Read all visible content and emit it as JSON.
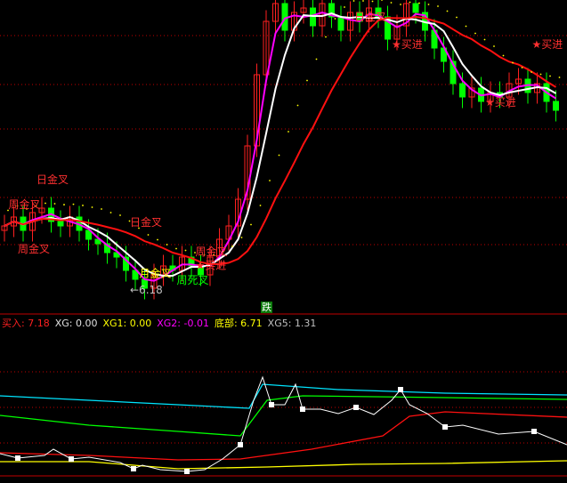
{
  "colors": {
    "up": "#ff2020",
    "down": "#00ff00",
    "ma_fast": "#ff00ff",
    "ma_mid": "#ffffff",
    "ma_slow": "#ff1010",
    "grid": "#c00000",
    "cyan": "#00e5ff",
    "yellow": "#ffff00"
  },
  "chart_data": [
    {
      "type": "candlestick",
      "title": "",
      "opens": [
        7.5,
        7.6,
        7.8,
        7.5,
        7.9,
        8.0,
        7.7,
        7.6,
        7.8,
        7.5,
        7.3,
        7.2,
        7.0,
        6.9,
        6.6,
        6.4,
        6.2,
        6.5,
        6.7,
        6.6,
        6.9,
        6.7,
        6.5,
        6.9,
        7.3,
        7.6,
        8.2,
        9.4,
        11.0,
        12.2,
        12.6,
        12.0,
        12.4,
        12.5,
        12.1,
        12.6,
        12.3,
        12.0,
        12.4,
        12.2,
        12.5,
        12.3,
        11.8,
        12.1,
        12.6,
        12.4,
        12.0,
        11.6,
        11.3,
        10.8,
        10.5,
        10.7,
        10.4,
        10.6,
        10.5,
        10.8,
        10.9,
        10.6,
        10.8,
        10.4
      ],
      "closes": [
        7.6,
        7.8,
        7.5,
        7.9,
        8.0,
        7.7,
        7.6,
        7.8,
        7.5,
        7.3,
        7.2,
        7.0,
        6.9,
        6.6,
        6.4,
        6.2,
        6.5,
        6.7,
        6.6,
        6.9,
        6.7,
        6.5,
        6.9,
        7.3,
        7.6,
        8.2,
        9.4,
        11.0,
        12.2,
        12.6,
        12.0,
        12.4,
        12.5,
        12.1,
        12.6,
        12.3,
        12.0,
        12.4,
        12.2,
        12.5,
        12.3,
        11.8,
        12.1,
        12.6,
        12.4,
        12.0,
        11.6,
        11.3,
        10.8,
        10.5,
        10.7,
        10.4,
        10.6,
        10.5,
        10.8,
        10.9,
        10.6,
        10.8,
        10.4,
        10.2
      ],
      "annotations": [
        {
          "text": "周金叉",
          "index": 1,
          "price": 8.0,
          "color": "#ff3030"
        },
        {
          "text": "日金叉",
          "index": 4,
          "price": 8.0,
          "color": "#ff3030"
        },
        {
          "text": "周金叉",
          "index": 2,
          "price": 7.0,
          "color": "#ff3030"
        },
        {
          "text": "日金叉",
          "index": 14,
          "price": 7.6,
          "color": "#ff3030"
        },
        {
          "text": "月金叉",
          "index": 15,
          "price": 6.45,
          "color": "#ffff00"
        },
        {
          "text": "周死叉",
          "index": 19,
          "price": 6.3,
          "color": "#00ff00"
        },
        {
          "text": "★买进",
          "index": 21,
          "price": 6.35,
          "color": "#ff3030"
        },
        {
          "text": "周金叉",
          "index": 21,
          "price": 6.1,
          "color": "#ff3030"
        },
        {
          "text": "日金叉",
          "index": 38,
          "price": 12.5,
          "color": "#ff3030"
        },
        {
          "text": "★买进",
          "index": 42,
          "price": 11.6,
          "color": "#ff3030"
        },
        {
          "text": "★买进",
          "index": 57,
          "price": 11.6,
          "color": "#ff3030"
        },
        {
          "text": "★买进",
          "index": 52,
          "price": 10.3,
          "color": "#ff3030"
        }
      ],
      "low_marker": "←6.18",
      "signal_badge": "跌"
    },
    {
      "type": "line",
      "x": [
        0,
        20,
        50,
        60,
        80,
        100,
        135,
        150,
        160,
        180,
        210,
        230,
        250,
        270,
        285,
        295,
        305,
        320,
        332,
        340,
        360,
        380,
        400,
        420,
        440,
        450,
        460,
        480,
        500,
        520,
        560,
        600,
        637
      ],
      "series": [
        {
          "color": "#ffffff",
          "values": [
            25,
            20,
            23,
            30,
            19,
            21,
            15,
            8,
            12,
            7,
            5,
            7,
            19,
            35,
            85,
            111,
            80,
            80,
            103,
            75,
            75,
            70,
            77,
            69,
            85,
            97,
            80,
            70,
            55,
            57,
            47,
            50,
            35
          ]
        }
      ],
      "step_series": [
        {
          "color": "#00e5ff",
          "x": [
            0,
            100,
            200,
            280,
            295,
            380,
            500,
            637
          ],
          "values": [
            90,
            85,
            80,
            76,
            103,
            97,
            93,
            91
          ]
        },
        {
          "color": "#00ff00",
          "x": [
            0,
            100,
            200,
            270,
            300,
            340,
            500,
            637
          ],
          "values": [
            68,
            57,
            50,
            45,
            85,
            90,
            88,
            86
          ]
        },
        {
          "color": "#ff1010",
          "x": [
            0,
            100,
            200,
            270,
            350,
            430,
            460,
            500,
            637
          ],
          "values": [
            26,
            23,
            18,
            19,
            30,
            45,
            67,
            72,
            66
          ]
        },
        {
          "color": "#ffff00",
          "x": [
            0,
            100,
            200,
            300,
            400,
            500,
            637
          ],
          "values": [
            16,
            16,
            8,
            10,
            13,
            14,
            17
          ]
        }
      ]
    }
  ],
  "legend": [
    {
      "label": "买入",
      "value": "7.18",
      "color": "#ff2020"
    },
    {
      "label": "XG",
      "value": "0.00",
      "color": "#e0e0e0"
    },
    {
      "label": "XG1",
      "value": "0.00",
      "color": "#ffff00"
    },
    {
      "label": "XG2",
      "value": "-0.01",
      "color": "#ff00ff"
    },
    {
      "label": "底部",
      "value": "6.71",
      "color": "#ffff00"
    },
    {
      "label": "XG5",
      "value": "1.31",
      "color": "#c0c0c0"
    }
  ]
}
